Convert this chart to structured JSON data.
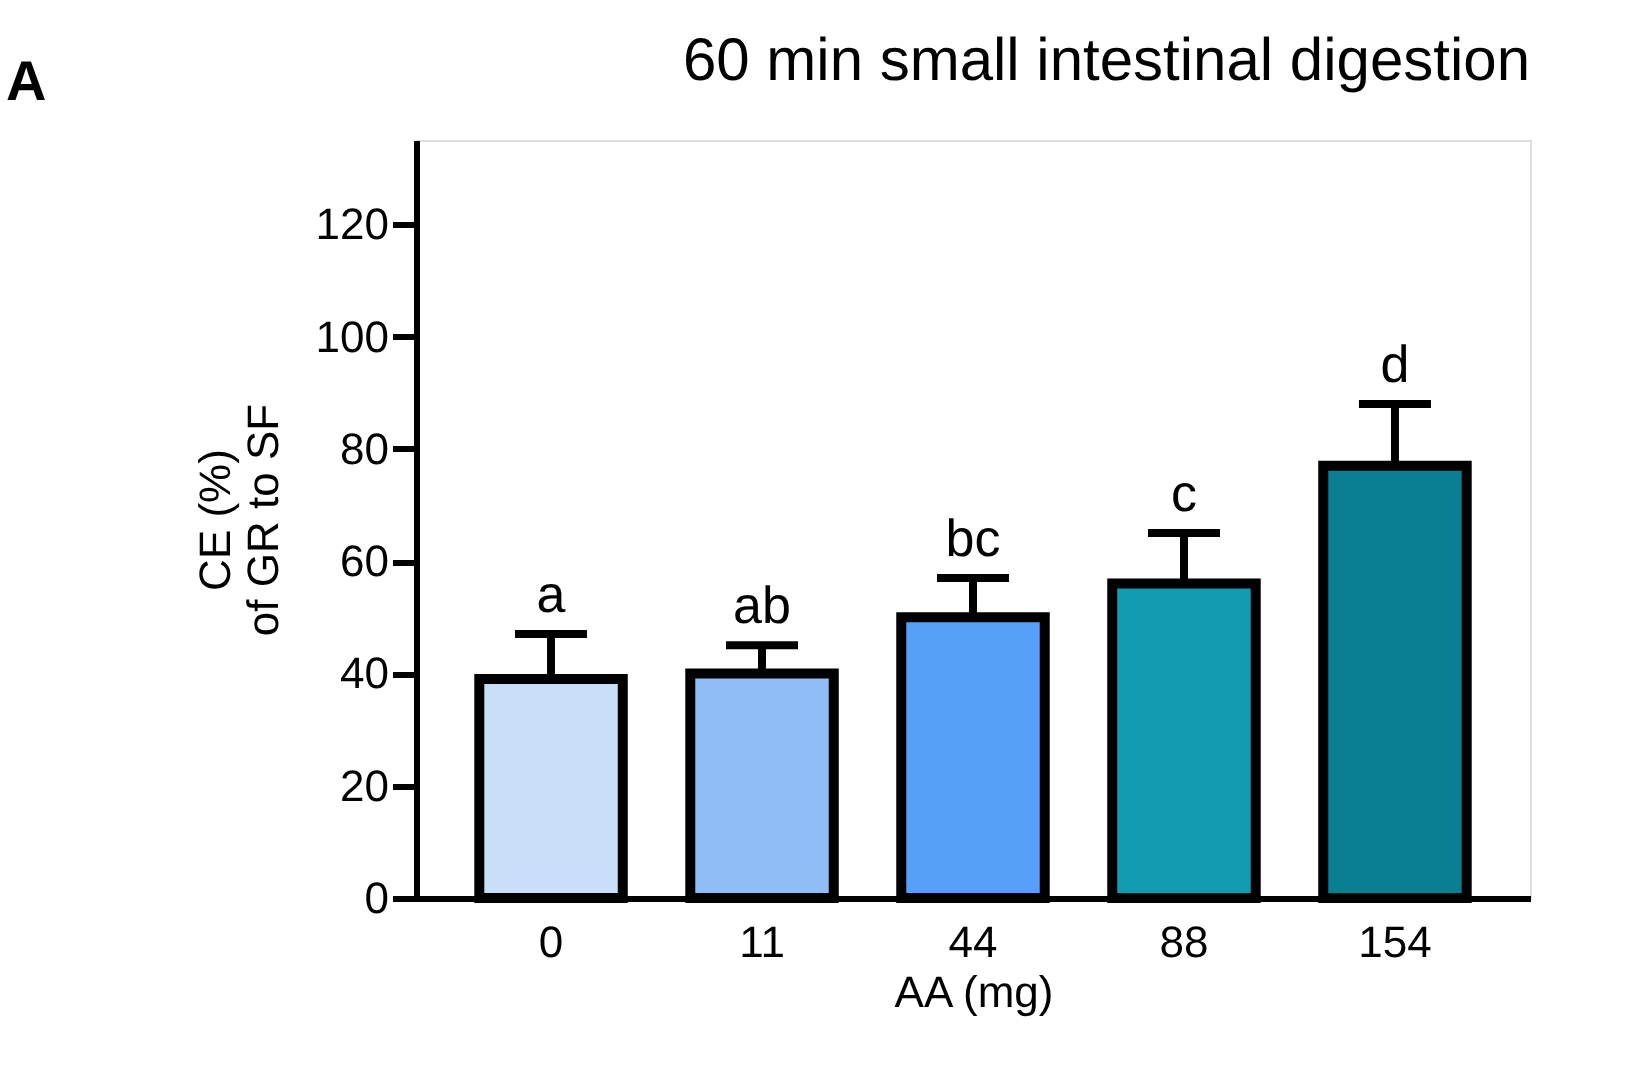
{
  "chart_data": {
    "type": "bar",
    "title": "60 min small intestinal digestion",
    "xlabel": "AA (mg)",
    "ylabel": "CE (%)\nof GR to SF",
    "categories": [
      "0",
      "11",
      "44",
      "88",
      "154"
    ],
    "values": [
      39,
      40,
      50,
      56,
      77
    ],
    "errors": [
      [
        39,
        47
      ],
      [
        40,
        45
      ],
      [
        50,
        57
      ],
      [
        56,
        65
      ],
      [
        77,
        88
      ]
    ],
    "colors": [
      "#c9dff7",
      "#8fbef7",
      "#56a0fa",
      "#139bb3",
      "#0a7e92"
    ],
    "ylim": [
      0,
      135
    ],
    "yticks": [
      0,
      20,
      40,
      60,
      80,
      100,
      120
    ],
    "grid": false,
    "annotations": [
      "A",
      {
        "text": "a",
        "x": "0",
        "y": 47
      },
      {
        "text": "ab",
        "x": "11",
        "y": 45
      },
      {
        "text": "bc",
        "x": "44",
        "y": 57
      },
      {
        "text": "c",
        "x": "88",
        "y": 65
      },
      {
        "text": "d",
        "x": "154",
        "y": 88
      }
    ]
  }
}
